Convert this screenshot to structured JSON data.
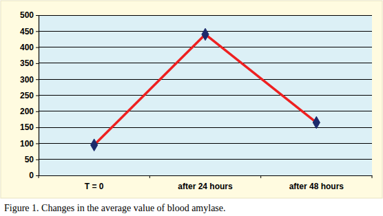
{
  "chart_data": {
    "type": "line",
    "title": "Figure 1. Changes in the average value of blood amylase.",
    "categories": [
      "T = 0",
      "after 24 hours",
      "after 48 hours"
    ],
    "values": [
      95,
      440,
      165
    ],
    "color": "#ee2020",
    "marker": "diamond",
    "ylim": [
      0,
      500
    ],
    "yticks": [
      0,
      50,
      100,
      150,
      200,
      250,
      300,
      350,
      400,
      450,
      500
    ],
    "grid": true
  }
}
